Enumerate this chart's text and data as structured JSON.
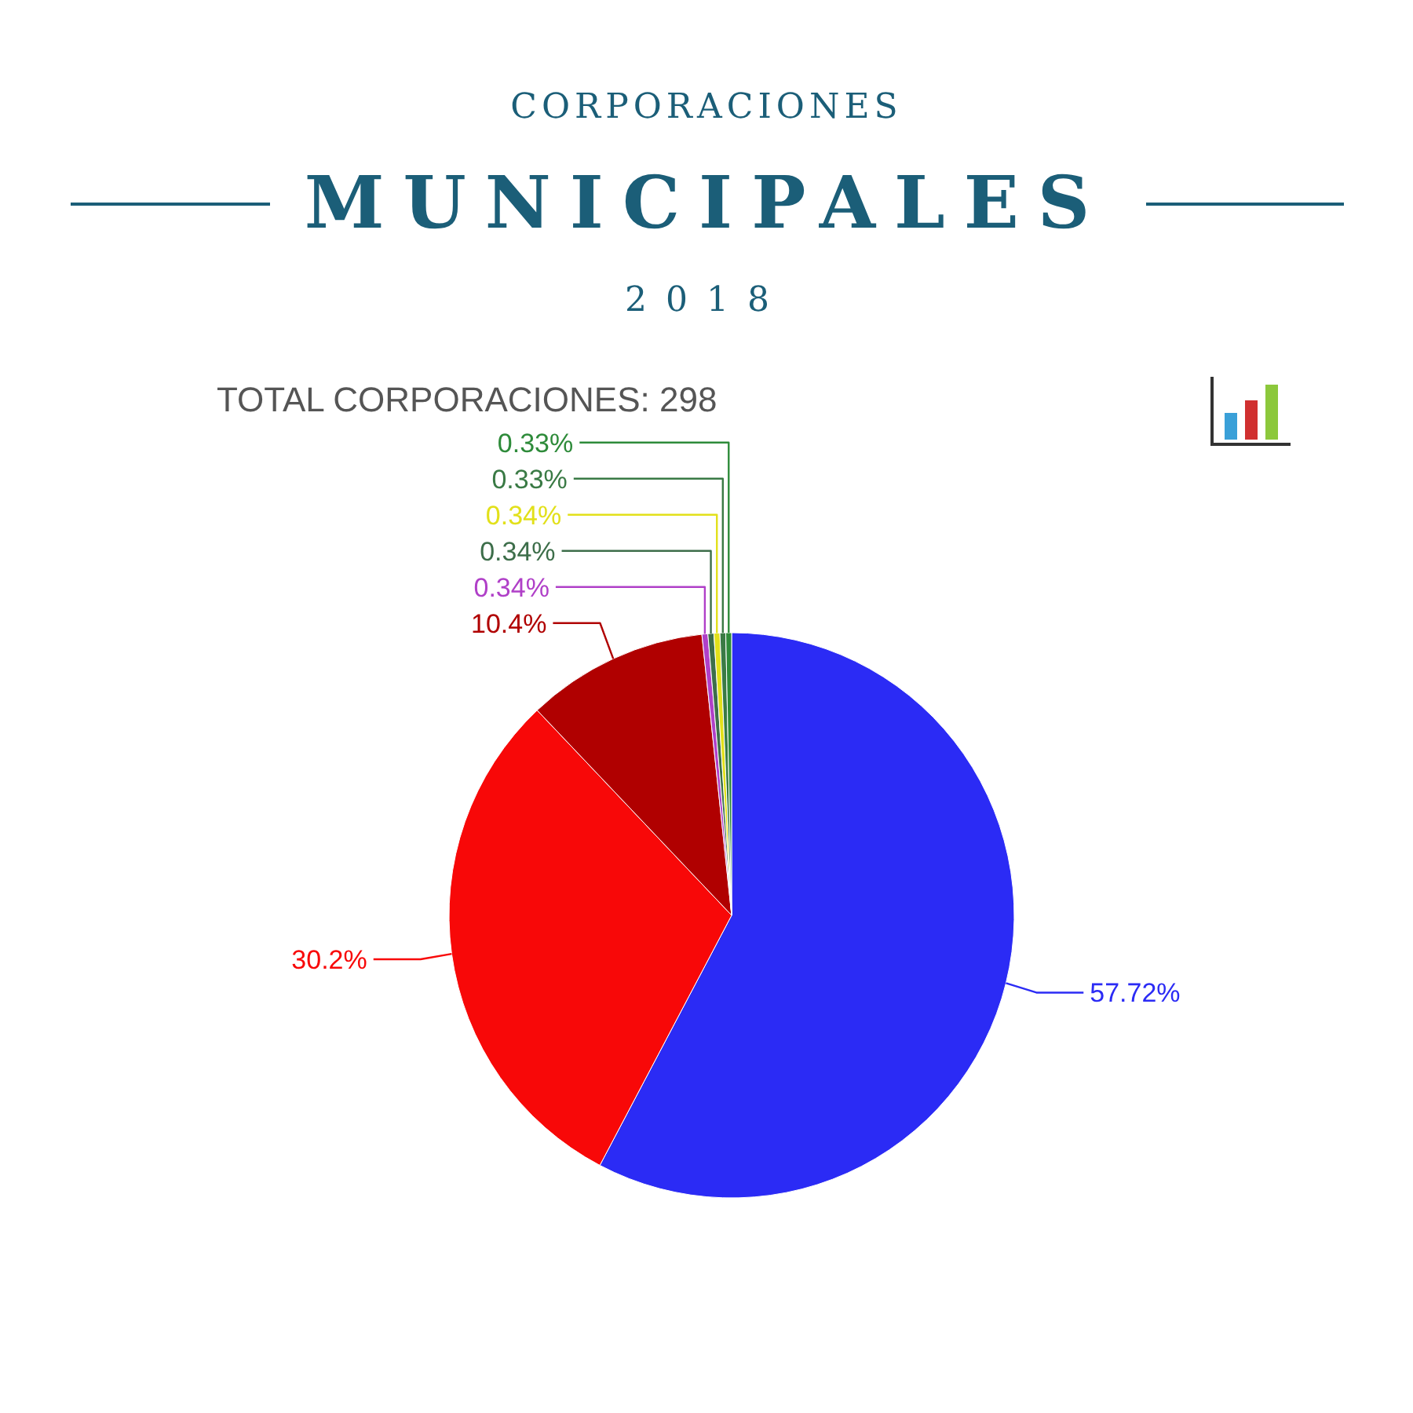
{
  "chart_data": {
    "type": "pie",
    "title": "CORPORACIONES MUNICIPALES",
    "subtitle": "2018",
    "annotations": [
      "TOTAL CORPORACIONES: 298"
    ],
    "categories": [
      null,
      null,
      null,
      null,
      null,
      null,
      null,
      null
    ],
    "values": [
      57.72,
      30.2,
      10.4,
      0.34,
      0.34,
      0.34,
      0.33,
      0.33
    ],
    "colors": [
      "#2b2bf5",
      "#f80808",
      "#b00000",
      "#b040c8",
      "#3d6e4a",
      "#e2e01a",
      "#3a7a45",
      "#2e8b3a"
    ],
    "value_labels": [
      "57.72%",
      "30.2%",
      "10.4%",
      "0.34%",
      "0.34%",
      "0.34%",
      "0.33%",
      "0.33%"
    ]
  }
}
